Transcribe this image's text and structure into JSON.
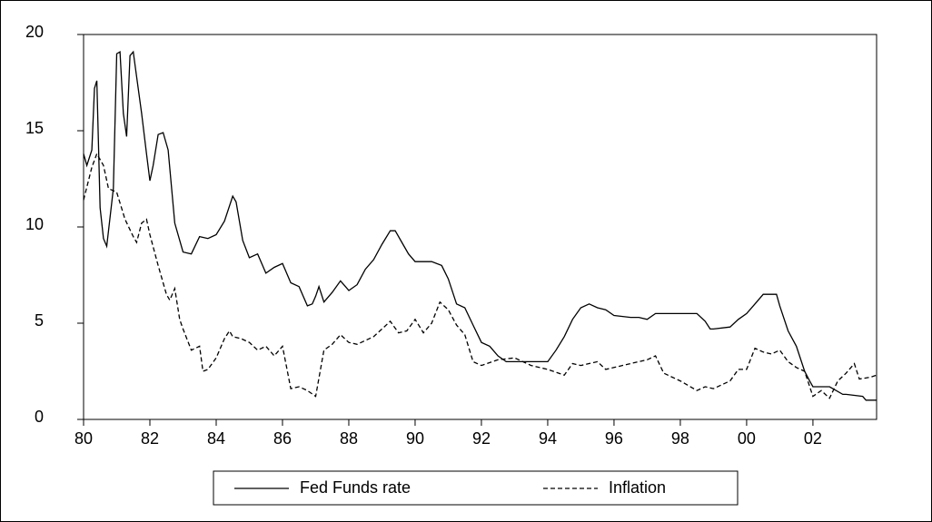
{
  "chart_data": {
    "type": "line",
    "xlim": [
      1980,
      2003.92
    ],
    "ylim": [
      0,
      20
    ],
    "xticks": [
      {
        "value": 1980,
        "label": "80"
      },
      {
        "value": 1982,
        "label": "82"
      },
      {
        "value": 1984,
        "label": "84"
      },
      {
        "value": 1986,
        "label": "86"
      },
      {
        "value": 1988,
        "label": "88"
      },
      {
        "value": 1990,
        "label": "90"
      },
      {
        "value": 1992,
        "label": "92"
      },
      {
        "value": 1994,
        "label": "94"
      },
      {
        "value": 1996,
        "label": "96"
      },
      {
        "value": 1998,
        "label": "98"
      },
      {
        "value": 2000,
        "label": "00"
      },
      {
        "value": 2002,
        "label": "02"
      }
    ],
    "yticks": [
      0,
      5,
      10,
      15,
      20
    ],
    "grid": false,
    "legend": "bottom",
    "series": [
      {
        "name": "Fed Funds rate",
        "color": "#000000",
        "dash": false,
        "x": [
          1980.0,
          1980.1,
          1980.25,
          1980.33,
          1980.4,
          1980.5,
          1980.6,
          1980.7,
          1980.9,
          1981.0,
          1981.1,
          1981.2,
          1981.3,
          1981.4,
          1981.5,
          1981.6,
          1981.75,
          1981.9,
          1982.0,
          1982.1,
          1982.25,
          1982.4,
          1982.55,
          1982.75,
          1983.0,
          1983.25,
          1983.5,
          1983.75,
          1984.0,
          1984.25,
          1984.5,
          1984.6,
          1984.8,
          1985.0,
          1985.25,
          1985.5,
          1985.75,
          1986.0,
          1986.25,
          1986.5,
          1986.75,
          1986.9,
          1987.0,
          1987.1,
          1987.25,
          1987.5,
          1987.75,
          1987.9,
          1988.0,
          1988.25,
          1988.5,
          1988.75,
          1989.0,
          1989.25,
          1989.4,
          1989.6,
          1989.8,
          1990.0,
          1990.5,
          1990.8,
          1991.0,
          1991.25,
          1991.5,
          1991.75,
          1992.0,
          1992.25,
          1992.5,
          1992.75,
          1993.0,
          1993.5,
          1994.0,
          1994.25,
          1994.5,
          1994.75,
          1995.0,
          1995.25,
          1995.5,
          1995.75,
          1996.0,
          1996.5,
          1996.75,
          1997.0,
          1997.25,
          1997.75,
          1998.0,
          1998.5,
          1998.75,
          1998.9,
          1999.0,
          1999.5,
          1999.75,
          2000.0,
          2000.25,
          2000.5,
          2000.9,
          2001.0,
          2001.25,
          2001.5,
          2001.75,
          2001.9,
          2002.0,
          2002.5,
          2002.9,
          2003.0,
          2003.5,
          2003.6,
          2003.92
        ],
        "values": [
          13.8,
          13.2,
          14.0,
          17.2,
          17.6,
          11.0,
          9.4,
          9.0,
          12.0,
          19.0,
          19.1,
          15.9,
          14.7,
          18.9,
          19.1,
          17.8,
          15.9,
          13.8,
          12.4,
          13.2,
          14.8,
          14.9,
          14.0,
          10.2,
          8.7,
          8.6,
          9.5,
          9.4,
          9.6,
          10.3,
          11.6,
          11.3,
          9.3,
          8.4,
          8.6,
          7.6,
          7.9,
          8.1,
          7.1,
          6.9,
          5.9,
          6.0,
          6.4,
          6.9,
          6.1,
          6.6,
          7.2,
          6.9,
          6.7,
          7.0,
          7.8,
          8.3,
          9.1,
          9.8,
          9.8,
          9.2,
          8.6,
          8.2,
          8.2,
          8.0,
          7.3,
          6.0,
          5.8,
          4.9,
          4.0,
          3.8,
          3.3,
          3.0,
          3.0,
          3.0,
          3.0,
          3.6,
          4.3,
          5.2,
          5.8,
          6.0,
          5.8,
          5.7,
          5.4,
          5.3,
          5.3,
          5.2,
          5.5,
          5.5,
          5.5,
          5.5,
          5.1,
          4.7,
          4.7,
          4.8,
          5.2,
          5.5,
          6.0,
          6.5,
          6.5,
          5.9,
          4.6,
          3.8,
          2.5,
          2.0,
          1.7,
          1.7,
          1.3,
          1.3,
          1.2,
          1.0,
          1.0
        ]
      },
      {
        "name": "Inflation",
        "color": "#000000",
        "dash": true,
        "x": [
          1980.0,
          1980.25,
          1980.4,
          1980.6,
          1980.75,
          1981.0,
          1981.25,
          1981.5,
          1981.6,
          1981.75,
          1981.9,
          1982.0,
          1982.25,
          1982.5,
          1982.6,
          1982.75,
          1982.9,
          1983.0,
          1983.25,
          1983.5,
          1983.6,
          1983.75,
          1984.0,
          1984.25,
          1984.4,
          1984.5,
          1984.75,
          1985.0,
          1985.25,
          1985.5,
          1985.75,
          1986.0,
          1986.25,
          1986.5,
          1986.75,
          1987.0,
          1987.25,
          1987.5,
          1987.75,
          1988.0,
          1988.25,
          1988.5,
          1988.75,
          1989.0,
          1989.25,
          1989.5,
          1989.75,
          1990.0,
          1990.25,
          1990.5,
          1990.75,
          1991.0,
          1991.25,
          1991.5,
          1991.75,
          1992.0,
          1992.5,
          1993.0,
          1993.5,
          1994.0,
          1994.5,
          1994.75,
          1995.0,
          1995.5,
          1995.75,
          1996.0,
          1996.5,
          1997.0,
          1997.25,
          1997.5,
          1998.0,
          1998.5,
          1998.75,
          1999.0,
          1999.5,
          1999.75,
          2000.0,
          2000.25,
          2000.5,
          2000.75,
          2001.0,
          2001.25,
          2001.5,
          2001.75,
          2002.0,
          2002.25,
          2002.5,
          2002.75,
          2003.0,
          2003.25,
          2003.4,
          2003.75,
          2003.92
        ],
        "values": [
          11.4,
          13.1,
          13.8,
          13.2,
          12.0,
          11.8,
          10.4,
          9.5,
          9.2,
          10.2,
          10.4,
          9.6,
          8.0,
          6.5,
          6.2,
          6.8,
          5.2,
          4.7,
          3.6,
          3.8,
          2.5,
          2.6,
          3.2,
          4.2,
          4.6,
          4.3,
          4.2,
          4.0,
          3.6,
          3.8,
          3.3,
          3.8,
          1.6,
          1.7,
          1.5,
          1.2,
          3.6,
          3.9,
          4.4,
          4.0,
          3.9,
          4.1,
          4.3,
          4.7,
          5.1,
          4.5,
          4.6,
          5.2,
          4.5,
          5.0,
          6.1,
          5.7,
          4.9,
          4.4,
          3.0,
          2.8,
          3.1,
          3.2,
          2.8,
          2.6,
          2.3,
          2.9,
          2.8,
          3.0,
          2.6,
          2.7,
          2.9,
          3.1,
          3.3,
          2.4,
          2.0,
          1.5,
          1.7,
          1.6,
          2.0,
          2.6,
          2.6,
          3.7,
          3.5,
          3.4,
          3.6,
          3.0,
          2.7,
          2.5,
          1.2,
          1.5,
          1.1,
          2.0,
          2.4,
          2.9,
          2.1,
          2.2,
          2.3
        ]
      }
    ]
  }
}
